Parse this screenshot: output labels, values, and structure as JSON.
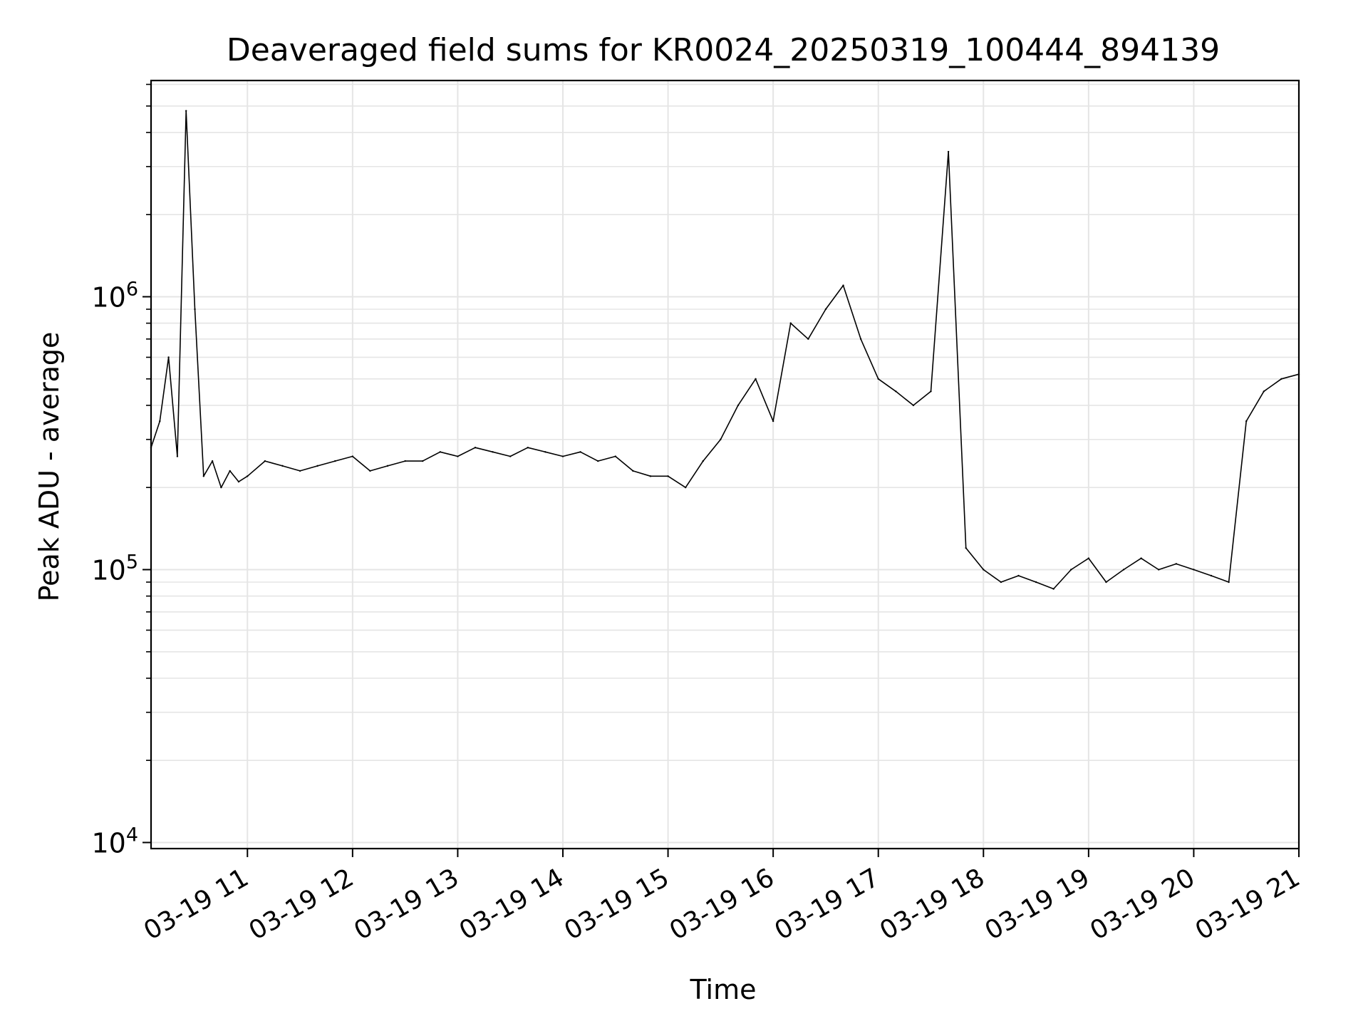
{
  "chart_data": {
    "type": "line",
    "title": "Deaveraged field sums for KR0024_20250319_100444_894139",
    "xlabel": "Time",
    "ylabel": "Peak ADU - average",
    "yscale": "log",
    "ylim": [
      9500,
      6200000
    ],
    "y_ticks": [
      {
        "value": 10000,
        "base": "10",
        "exp": "4"
      },
      {
        "value": 100000,
        "base": "10",
        "exp": "5"
      },
      {
        "value": 1000000,
        "base": "10",
        "exp": "6"
      }
    ],
    "xlim": [
      "2025-03-19 10:05",
      "2025-03-19 21:00"
    ],
    "x_ticks": [
      {
        "time": "2025-03-19 11:00",
        "label": "03-19 11"
      },
      {
        "time": "2025-03-19 12:00",
        "label": "03-19 12"
      },
      {
        "time": "2025-03-19 13:00",
        "label": "03-19 13"
      },
      {
        "time": "2025-03-19 14:00",
        "label": "03-19 14"
      },
      {
        "time": "2025-03-19 15:00",
        "label": "03-19 15"
      },
      {
        "time": "2025-03-19 16:00",
        "label": "03-19 16"
      },
      {
        "time": "2025-03-19 17:00",
        "label": "03-19 17"
      },
      {
        "time": "2025-03-19 18:00",
        "label": "03-19 18"
      },
      {
        "time": "2025-03-19 19:00",
        "label": "03-19 19"
      },
      {
        "time": "2025-03-19 20:00",
        "label": "03-19 20"
      },
      {
        "time": "2025-03-19 21:00",
        "label": "03-19 21"
      }
    ],
    "grid": true,
    "series": [
      {
        "color": "#000000",
        "x": [
          "2025-03-19 10:05",
          "2025-03-19 10:10",
          "2025-03-19 10:15",
          "2025-03-19 10:20",
          "2025-03-19 10:25",
          "2025-03-19 10:30",
          "2025-03-19 10:35",
          "2025-03-19 10:40",
          "2025-03-19 10:45",
          "2025-03-19 10:50",
          "2025-03-19 10:55",
          "2025-03-19 11:00",
          "2025-03-19 11:10",
          "2025-03-19 11:20",
          "2025-03-19 11:30",
          "2025-03-19 11:40",
          "2025-03-19 11:50",
          "2025-03-19 12:00",
          "2025-03-19 12:10",
          "2025-03-19 12:20",
          "2025-03-19 12:30",
          "2025-03-19 12:40",
          "2025-03-19 12:50",
          "2025-03-19 13:00",
          "2025-03-19 13:10",
          "2025-03-19 13:20",
          "2025-03-19 13:30",
          "2025-03-19 13:40",
          "2025-03-19 13:50",
          "2025-03-19 14:00",
          "2025-03-19 14:10",
          "2025-03-19 14:20",
          "2025-03-19 14:30",
          "2025-03-19 14:40",
          "2025-03-19 14:50",
          "2025-03-19 15:00",
          "2025-03-19 15:10",
          "2025-03-19 15:20",
          "2025-03-19 15:30",
          "2025-03-19 15:40",
          "2025-03-19 15:50",
          "2025-03-19 16:00",
          "2025-03-19 16:10",
          "2025-03-19 16:20",
          "2025-03-19 16:30",
          "2025-03-19 16:40",
          "2025-03-19 16:50",
          "2025-03-19 17:00",
          "2025-03-19 17:10",
          "2025-03-19 17:20",
          "2025-03-19 17:30",
          "2025-03-19 17:40",
          "2025-03-19 17:50",
          "2025-03-19 18:00",
          "2025-03-19 18:10",
          "2025-03-19 18:20",
          "2025-03-19 18:30",
          "2025-03-19 18:40",
          "2025-03-19 18:50",
          "2025-03-19 19:00",
          "2025-03-19 19:10",
          "2025-03-19 19:20",
          "2025-03-19 19:30",
          "2025-03-19 19:40",
          "2025-03-19 19:50",
          "2025-03-19 20:00",
          "2025-03-19 20:10",
          "2025-03-19 20:20",
          "2025-03-19 20:30",
          "2025-03-19 20:40",
          "2025-03-19 20:50",
          "2025-03-19 21:00"
        ],
        "y": [
          280000,
          350000,
          600000,
          260000,
          4800000,
          900000,
          220000,
          250000,
          200000,
          230000,
          210000,
          220000,
          250000,
          240000,
          230000,
          240000,
          250000,
          260000,
          230000,
          240000,
          250000,
          250000,
          270000,
          260000,
          280000,
          270000,
          260000,
          280000,
          270000,
          260000,
          270000,
          250000,
          260000,
          230000,
          220000,
          220000,
          200000,
          250000,
          300000,
          400000,
          500000,
          350000,
          800000,
          700000,
          900000,
          1100000,
          700000,
          500000,
          450000,
          400000,
          450000,
          3400000,
          120000,
          100000,
          90000,
          95000,
          90000,
          85000,
          100000,
          110000,
          90000,
          100000,
          110000,
          100000,
          105000,
          100000,
          95000,
          90000,
          350000,
          450000,
          500000,
          520000
        ]
      }
    ]
  }
}
